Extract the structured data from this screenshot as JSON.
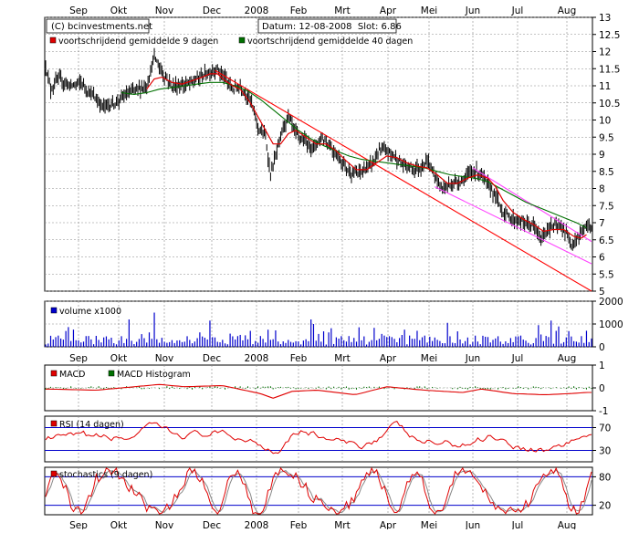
{
  "chart_data": {
    "type": "line",
    "copyright": "(C) bcinvestments.net",
    "info": "Datum: 12-08-2008  Slot: 6.86",
    "months": [
      "Sep",
      "Okt",
      "Nov",
      "Dec",
      "2008",
      "Feb",
      "Mrt",
      "Apr",
      "Mei",
      "Jun",
      "Jul",
      "Aug"
    ],
    "price": {
      "legend": [
        "voortschrijdend gemiddelde 9 dagen",
        "voortschrijdend gemiddelde 40 dagen"
      ],
      "ylim": [
        5,
        13
      ],
      "yticks": [
        "13",
        "12.5",
        "12",
        "11.5",
        "11",
        "10.5",
        "10",
        "9.5",
        "9",
        "8.5",
        "8",
        "7.5",
        "7",
        "6.5",
        "6",
        "5.5",
        "5"
      ],
      "close_key": [
        [
          0,
          11.6
        ],
        [
          4,
          10.9
        ],
        [
          10,
          11.2
        ],
        [
          20,
          11.0
        ],
        [
          28,
          11.1
        ],
        [
          35,
          10.8
        ],
        [
          45,
          10.4
        ],
        [
          55,
          10.5
        ],
        [
          62,
          10.7
        ],
        [
          72,
          10.9
        ],
        [
          80,
          11.0
        ],
        [
          86,
          11.85
        ],
        [
          92,
          11.4
        ],
        [
          100,
          11.0
        ],
        [
          108,
          11.0
        ],
        [
          116,
          11.1
        ],
        [
          124,
          11.3
        ],
        [
          130,
          11.4
        ],
        [
          136,
          11.5
        ],
        [
          142,
          11.2
        ],
        [
          148,
          10.9
        ],
        [
          154,
          11.0
        ],
        [
          162,
          10.6
        ],
        [
          168,
          9.8
        ],
        [
          174,
          9.5
        ],
        [
          178,
          8.4
        ],
        [
          184,
          9.2
        ],
        [
          188,
          9.8
        ],
        [
          192,
          10.1
        ],
        [
          198,
          9.6
        ],
        [
          204,
          9.4
        ],
        [
          212,
          9.2
        ],
        [
          218,
          9.5
        ],
        [
          224,
          9.3
        ],
        [
          230,
          9.0
        ],
        [
          238,
          8.6
        ],
        [
          244,
          8.4
        ],
        [
          250,
          8.5
        ],
        [
          258,
          8.7
        ],
        [
          264,
          9.1
        ],
        [
          270,
          9.1
        ],
        [
          276,
          8.95
        ],
        [
          282,
          8.7
        ],
        [
          290,
          8.6
        ],
        [
          296,
          8.6
        ],
        [
          302,
          8.8
        ],
        [
          308,
          8.35
        ],
        [
          314,
          8.0
        ],
        [
          320,
          8.1
        ],
        [
          326,
          8.2
        ],
        [
          332,
          8.3
        ],
        [
          338,
          8.5
        ],
        [
          344,
          8.45
        ],
        [
          350,
          8.1
        ],
        [
          356,
          7.8
        ],
        [
          362,
          7.3
        ],
        [
          370,
          7.1
        ],
        [
          378,
          7.0
        ],
        [
          386,
          6.9
        ],
        [
          392,
          6.5
        ],
        [
          398,
          6.85
        ],
        [
          404,
          6.9
        ],
        [
          410,
          6.8
        ],
        [
          416,
          6.4
        ],
        [
          422,
          6.6
        ],
        [
          428,
          6.9
        ]
      ],
      "ma9": [
        [
          80,
          10.9
        ],
        [
          86,
          11.2
        ],
        [
          92,
          11.25
        ],
        [
          100,
          11.1
        ],
        [
          108,
          11.05
        ],
        [
          116,
          11.15
        ],
        [
          124,
          11.25
        ],
        [
          130,
          11.35
        ],
        [
          136,
          11.35
        ],
        [
          142,
          11.15
        ],
        [
          148,
          11.0
        ],
        [
          154,
          10.9
        ],
        [
          162,
          10.5
        ],
        [
          168,
          10.1
        ],
        [
          174,
          9.7
        ],
        [
          180,
          9.3
        ],
        [
          186,
          9.3
        ],
        [
          192,
          9.6
        ],
        [
          198,
          9.7
        ],
        [
          206,
          9.5
        ],
        [
          214,
          9.3
        ],
        [
          222,
          9.3
        ],
        [
          230,
          9.1
        ],
        [
          238,
          8.8
        ],
        [
          246,
          8.55
        ],
        [
          254,
          8.55
        ],
        [
          262,
          8.75
        ],
        [
          270,
          8.95
        ],
        [
          278,
          8.9
        ],
        [
          286,
          8.75
        ],
        [
          294,
          8.65
        ],
        [
          302,
          8.6
        ],
        [
          310,
          8.4
        ],
        [
          318,
          8.15
        ],
        [
          326,
          8.15
        ],
        [
          334,
          8.3
        ],
        [
          342,
          8.4
        ],
        [
          350,
          8.3
        ],
        [
          356,
          8.05
        ],
        [
          362,
          7.65
        ],
        [
          370,
          7.3
        ],
        [
          378,
          7.1
        ],
        [
          386,
          6.95
        ],
        [
          394,
          6.75
        ],
        [
          402,
          6.8
        ],
        [
          410,
          6.8
        ],
        [
          418,
          6.6
        ],
        [
          424,
          6.55
        ],
        [
          428,
          6.65
        ]
      ],
      "ma40": [
        [
          60,
          10.8
        ],
        [
          70,
          10.75
        ],
        [
          80,
          10.8
        ],
        [
          90,
          10.9
        ],
        [
          100,
          10.95
        ],
        [
          110,
          11.0
        ],
        [
          120,
          11.05
        ],
        [
          130,
          11.1
        ],
        [
          140,
          11.1
        ],
        [
          150,
          11.0
        ],
        [
          160,
          10.85
        ],
        [
          170,
          10.6
        ],
        [
          180,
          10.3
        ],
        [
          190,
          10.0
        ],
        [
          200,
          9.7
        ],
        [
          210,
          9.45
        ],
        [
          220,
          9.25
        ],
        [
          230,
          9.1
        ],
        [
          240,
          8.95
        ],
        [
          250,
          8.85
        ],
        [
          260,
          8.8
        ],
        [
          270,
          8.75
        ],
        [
          280,
          8.7
        ],
        [
          290,
          8.65
        ],
        [
          300,
          8.6
        ],
        [
          310,
          8.5
        ],
        [
          320,
          8.4
        ],
        [
          330,
          8.35
        ],
        [
          340,
          8.3
        ],
        [
          350,
          8.2
        ],
        [
          360,
          8.0
        ],
        [
          370,
          7.8
        ],
        [
          380,
          7.6
        ],
        [
          390,
          7.45
        ],
        [
          400,
          7.3
        ],
        [
          410,
          7.15
        ],
        [
          420,
          7.0
        ],
        [
          428,
          6.85
        ]
      ],
      "trendlines": [
        {
          "color": "#ff0000",
          "from": [
            134,
            11.45
          ],
          "to": [
            432,
            5.0
          ]
        },
        {
          "color": "#ff44ff",
          "from": [
            308,
            8.05
          ],
          "to": [
            432,
            5.8
          ]
        },
        {
          "color": "#ff44ff",
          "from": [
            338,
            8.6
          ],
          "to": [
            432,
            6.45
          ]
        }
      ]
    },
    "volume": {
      "label": "volume x1000",
      "ylim": [
        0,
        2000
      ],
      "yticks": [
        "2000",
        "1000",
        "0"
      ]
    },
    "macd": {
      "labels": [
        "MACD",
        "MACD Histogram"
      ],
      "ylim": [
        -1,
        1
      ],
      "yticks": [
        "1",
        "0",
        "-1"
      ]
    },
    "rsi": {
      "label": "RSI (14 dagen)",
      "ylim": [
        10,
        90
      ],
      "yticks": [
        "70",
        "30"
      ],
      "levels": [
        70,
        30
      ]
    },
    "stoch": {
      "label": "stochastics (9 dagen)",
      "ylim": [
        0,
        100
      ],
      "yticks": [
        "80",
        "20"
      ],
      "levels": [
        80,
        20
      ]
    }
  }
}
